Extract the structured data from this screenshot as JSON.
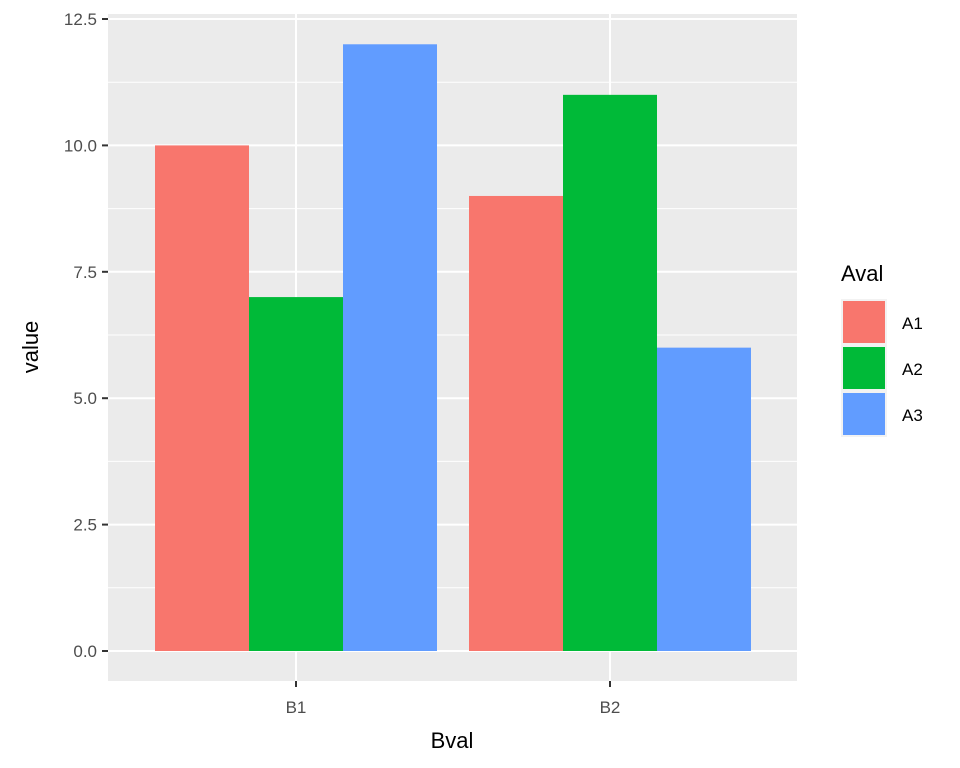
{
  "chart_data": {
    "type": "bar",
    "title": "",
    "xlabel": "Bval",
    "ylabel": "value",
    "categories": [
      "B1",
      "B2"
    ],
    "series": [
      {
        "name": "A1",
        "color": "#F8766D",
        "values": [
          10,
          9
        ]
      },
      {
        "name": "A2",
        "color": "#00BA38",
        "values": [
          7,
          11
        ]
      },
      {
        "name": "A3",
        "color": "#619CFF",
        "values": [
          12,
          6
        ]
      }
    ],
    "ylim": [
      -0.6,
      12.6
    ],
    "yticks": [
      0.0,
      2.5,
      5.0,
      7.5,
      10.0,
      12.5
    ],
    "ytick_labels": [
      "0.0",
      "2.5",
      "5.0",
      "7.5",
      "10.0",
      "12.5"
    ],
    "grid": true,
    "legend": {
      "title": "Aval",
      "position": "right",
      "entries": [
        "A1",
        "A2",
        "A3"
      ]
    },
    "bar_layout": "dodge"
  },
  "theme": {
    "panel_bg": "#EBEBEB",
    "grid_major": "#FFFFFF",
    "tick_color": "#333333",
    "text_color": "#4D4D4D"
  }
}
